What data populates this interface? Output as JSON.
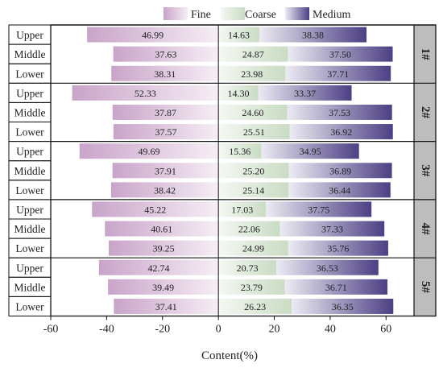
{
  "chart_data": {
    "type": "bar",
    "orientation": "horizontal",
    "stacked": true,
    "xlabel": "Content(%)",
    "xlim": [
      -60,
      70
    ],
    "xticks": [
      -60,
      -40,
      -20,
      0,
      20,
      40,
      60
    ],
    "legend": {
      "placement": "top",
      "entries": [
        "Fine",
        "Coarse",
        "Medium"
      ]
    },
    "colors": {
      "Fine": [
        "#c9a4c9",
        "#f6eef5"
      ],
      "Coarse": [
        "#f5f8f3",
        "#c9dcc4"
      ],
      "Medium": [
        "#ecebf3",
        "#4d3f84"
      ]
    },
    "groups": [
      {
        "label": "1#",
        "rows": [
          {
            "label": "Upper",
            "fine": 46.99,
            "coarse": 14.63,
            "medium": 38.38
          },
          {
            "label": "Middle",
            "fine": 37.63,
            "coarse": 24.87,
            "medium": 37.5
          },
          {
            "label": "Lower",
            "fine": 38.31,
            "coarse": 23.98,
            "medium": 37.71
          }
        ]
      },
      {
        "label": "2#",
        "rows": [
          {
            "label": "Upper",
            "fine": 52.33,
            "coarse": 14.3,
            "medium": 33.37
          },
          {
            "label": "Middle",
            "fine": 37.87,
            "coarse": 24.6,
            "medium": 37.53
          },
          {
            "label": "Lower",
            "fine": 37.57,
            "coarse": 25.51,
            "medium": 36.92
          }
        ]
      },
      {
        "label": "3#",
        "rows": [
          {
            "label": "Upper",
            "fine": 49.69,
            "coarse": 15.36,
            "medium": 34.95
          },
          {
            "label": "Middle",
            "fine": 37.91,
            "coarse": 25.2,
            "medium": 36.89
          },
          {
            "label": "Lower",
            "fine": 38.42,
            "coarse": 25.14,
            "medium": 36.44
          }
        ]
      },
      {
        "label": "4#",
        "rows": [
          {
            "label": "Upper",
            "fine": 45.22,
            "coarse": 17.03,
            "medium": 37.75
          },
          {
            "label": "Middle",
            "fine": 40.61,
            "coarse": 22.06,
            "medium": 37.33
          },
          {
            "label": "Lower",
            "fine": 39.25,
            "coarse": 24.99,
            "medium": 35.76
          }
        ]
      },
      {
        "label": "5#",
        "rows": [
          {
            "label": "Upper",
            "fine": 42.74,
            "coarse": 20.73,
            "medium": 36.53
          },
          {
            "label": "Middle",
            "fine": 39.49,
            "coarse": 23.79,
            "medium": 36.71
          },
          {
            "label": "Lower",
            "fine": 37.41,
            "coarse": 26.23,
            "medium": 36.35
          }
        ]
      }
    ]
  }
}
